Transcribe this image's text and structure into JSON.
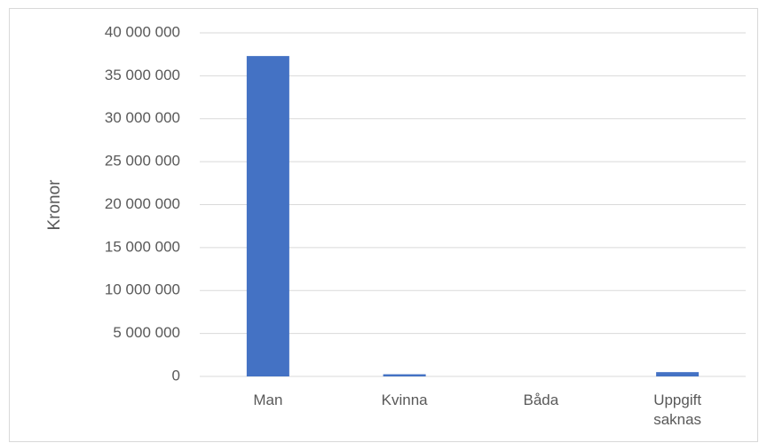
{
  "chart_data": {
    "type": "bar",
    "y_label": "Kronor",
    "categories": [
      "Man",
      "Kvinna",
      "Båda",
      "Uppgift saknas"
    ],
    "values": [
      37300000,
      250000,
      0,
      500000
    ],
    "color": "#4472c4",
    "ylim": [
      0,
      40000000
    ],
    "yticks": [
      0,
      {
        "value": 5000000,
        "label": "5 000 000"
      },
      {
        "value": 10000000,
        "label": "10 000 000"
      },
      {
        "value": 15000000,
        "label": "15 000 000"
      },
      {
        "value": 20000000,
        "label": "20 000 000"
      },
      {
        "value": 25000000,
        "label": "25 000 000"
      },
      {
        "value": 30000000,
        "label": "30 000 000"
      },
      {
        "value": 35000000,
        "label": "35 000 000"
      },
      {
        "value": 40000000,
        "label": "40 000 000"
      }
    ],
    "grid": true
  }
}
